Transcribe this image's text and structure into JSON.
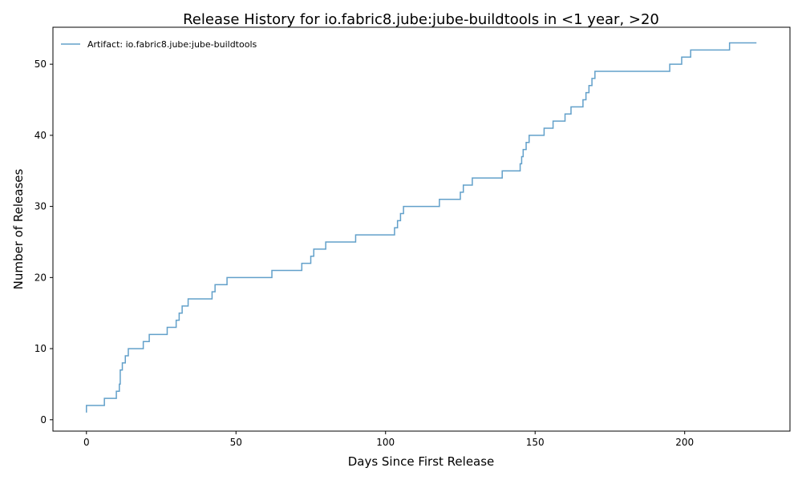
{
  "chart_data": {
    "type": "line",
    "title": "Release History for io.fabric8.jube:jube-buildtools in <1 year, >20",
    "xlabel": "Days Since First Release",
    "ylabel": "Number of Releases",
    "xlim": [
      -11.2,
      235.2
    ],
    "ylim": [
      -1.6,
      55.2
    ],
    "xticks": [
      0,
      50,
      100,
      150,
      200
    ],
    "yticks": [
      0,
      10,
      20,
      30,
      40,
      50
    ],
    "grid": false,
    "legend_position": "upper-left",
    "series": [
      {
        "name": "Artifact: io.fabric8.jube:jube-buildtools",
        "color": "#1f77b4",
        "step": "post",
        "x": [
          0,
          0,
          6,
          10,
          11,
          11.3,
          12,
          13,
          14,
          19,
          21,
          27,
          30,
          31,
          32,
          34,
          42,
          43,
          47,
          62,
          72,
          75,
          76,
          80,
          90,
          103,
          104,
          105,
          106,
          118,
          125,
          126,
          129,
          139,
          145,
          145.5,
          146,
          147,
          148,
          153,
          156,
          160,
          162,
          166,
          167,
          168,
          169,
          170,
          195,
          199,
          202,
          215,
          224
        ],
        "y": [
          1,
          2,
          3,
          4,
          5,
          7,
          8,
          9,
          10,
          11,
          12,
          13,
          14,
          15,
          16,
          17,
          18,
          19,
          20,
          21,
          22,
          23,
          24,
          25,
          26,
          27,
          28,
          29,
          30,
          31,
          32,
          33,
          34,
          35,
          36,
          37,
          38,
          39,
          40,
          41,
          42,
          43,
          44,
          45,
          46,
          47,
          48,
          49,
          50,
          51,
          52,
          53,
          53
        ]
      }
    ]
  }
}
